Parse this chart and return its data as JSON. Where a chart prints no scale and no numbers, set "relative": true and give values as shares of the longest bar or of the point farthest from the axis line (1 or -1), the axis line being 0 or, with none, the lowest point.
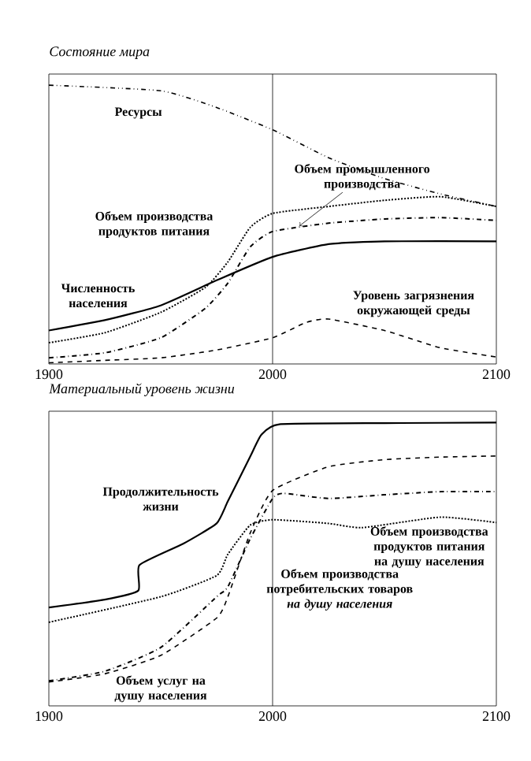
{
  "chart_data": [
    {
      "type": "line",
      "title": "Состояние мира",
      "relative": true,
      "xlim": [
        1900,
        2100
      ],
      "xticks": [
        1900,
        2000,
        2100
      ],
      "tick_labels": "x",
      "ref_lines": [
        {
          "axis": "x",
          "value": 2000
        }
      ],
      "series": [
        {
          "name": "Ресурсы",
          "color": "#000000",
          "line_style": "dashdotdot",
          "x": [
            1900,
            1950,
            1975,
            2000,
            2025,
            2050,
            2075,
            2100
          ],
          "values": [
            1.0,
            0.98,
            0.92,
            0.84,
            0.74,
            0.665,
            0.61,
            0.565
          ]
        },
        {
          "name": "Объем промышленного производства",
          "color": "#000000",
          "line_style": "dashdot",
          "x": [
            1900,
            1925,
            1950,
            1970,
            1980,
            1990,
            2000,
            2025,
            2050,
            2075,
            2100
          ],
          "values": [
            0.022,
            0.04,
            0.094,
            0.2,
            0.29,
            0.42,
            0.475,
            0.505,
            0.52,
            0.525,
            0.515
          ]
        },
        {
          "name": "Объем производства продуктов питания",
          "color": "#000000",
          "line_style": "dotted",
          "x": [
            1900,
            1925,
            1950,
            1970,
            1980,
            1990,
            2000,
            2025,
            2050,
            2075,
            2100
          ],
          "values": [
            0.076,
            0.112,
            0.185,
            0.275,
            0.366,
            0.49,
            0.54,
            0.565,
            0.587,
            0.6,
            0.565
          ]
        },
        {
          "name": "Численность населения",
          "color": "#000000",
          "line_style": "solid",
          "x": [
            1900,
            1925,
            1950,
            1975,
            2000,
            2025,
            2050,
            2100
          ],
          "values": [
            0.12,
            0.157,
            0.21,
            0.3,
            0.384,
            0.43,
            0.44,
            0.44
          ]
        },
        {
          "name": "Уровень загрязнения окружающей среды",
          "color": "#000000",
          "line_style": "dashed",
          "x": [
            1900,
            1925,
            1950,
            1975,
            2000,
            2015,
            2025,
            2050,
            2075,
            2100
          ],
          "values": [
            0.004,
            0.013,
            0.022,
            0.05,
            0.094,
            0.149,
            0.161,
            0.12,
            0.058,
            0.025
          ]
        }
      ]
    },
    {
      "type": "line",
      "title": "Материальный уровень жизни",
      "relative": true,
      "xlim": [
        1900,
        2100
      ],
      "xticks": [
        1900,
        2000,
        2100
      ],
      "tick_labels": "x",
      "ref_lines": [
        {
          "axis": "x",
          "value": 2000
        }
      ],
      "series": [
        {
          "name": "Продолжительность жизни",
          "color": "#000000",
          "line_style": "solid",
          "x": [
            1900,
            1925,
            1940,
            1940.5,
            1960,
            1975,
            1980,
            1990,
            1995,
            2003,
            2050,
            2100
          ],
          "values": [
            0.347,
            0.375,
            0.407,
            0.497,
            0.572,
            0.644,
            0.722,
            0.88,
            0.957,
            0.994,
            0.998,
            1.0
          ]
        },
        {
          "name": "Объем производства продуктов питания на душу населения",
          "color": "#000000",
          "line_style": "dotted",
          "x": [
            1900,
            1950,
            1975,
            1980,
            1990,
            2000,
            2025,
            2040,
            2075,
            2100
          ],
          "values": [
            0.295,
            0.385,
            0.46,
            0.535,
            0.638,
            0.657,
            0.644,
            0.629,
            0.666,
            0.647
          ]
        },
        {
          "name": "Объем производства потребительских товаров *на душу населения*",
          "color": "#000000",
          "line_style": "dashed",
          "x": [
            1900,
            1925,
            1950,
            1975,
            1980,
            1990,
            2000,
            2025,
            2050,
            2075,
            2100
          ],
          "values": [
            0.084,
            0.113,
            0.178,
            0.31,
            0.385,
            0.61,
            0.76,
            0.844,
            0.869,
            0.878,
            0.882
          ]
        },
        {
          "name": "Объем услуг на душу населения",
          "color": "#000000",
          "line_style": "dashdot",
          "x": [
            1900,
            1925,
            1950,
            1975,
            1980,
            1990,
            2000,
            2005,
            2025,
            2050,
            2075,
            2100
          ],
          "values": [
            0.088,
            0.122,
            0.206,
            0.385,
            0.42,
            0.59,
            0.732,
            0.75,
            0.732,
            0.745,
            0.756,
            0.756
          ]
        }
      ]
    }
  ]
}
